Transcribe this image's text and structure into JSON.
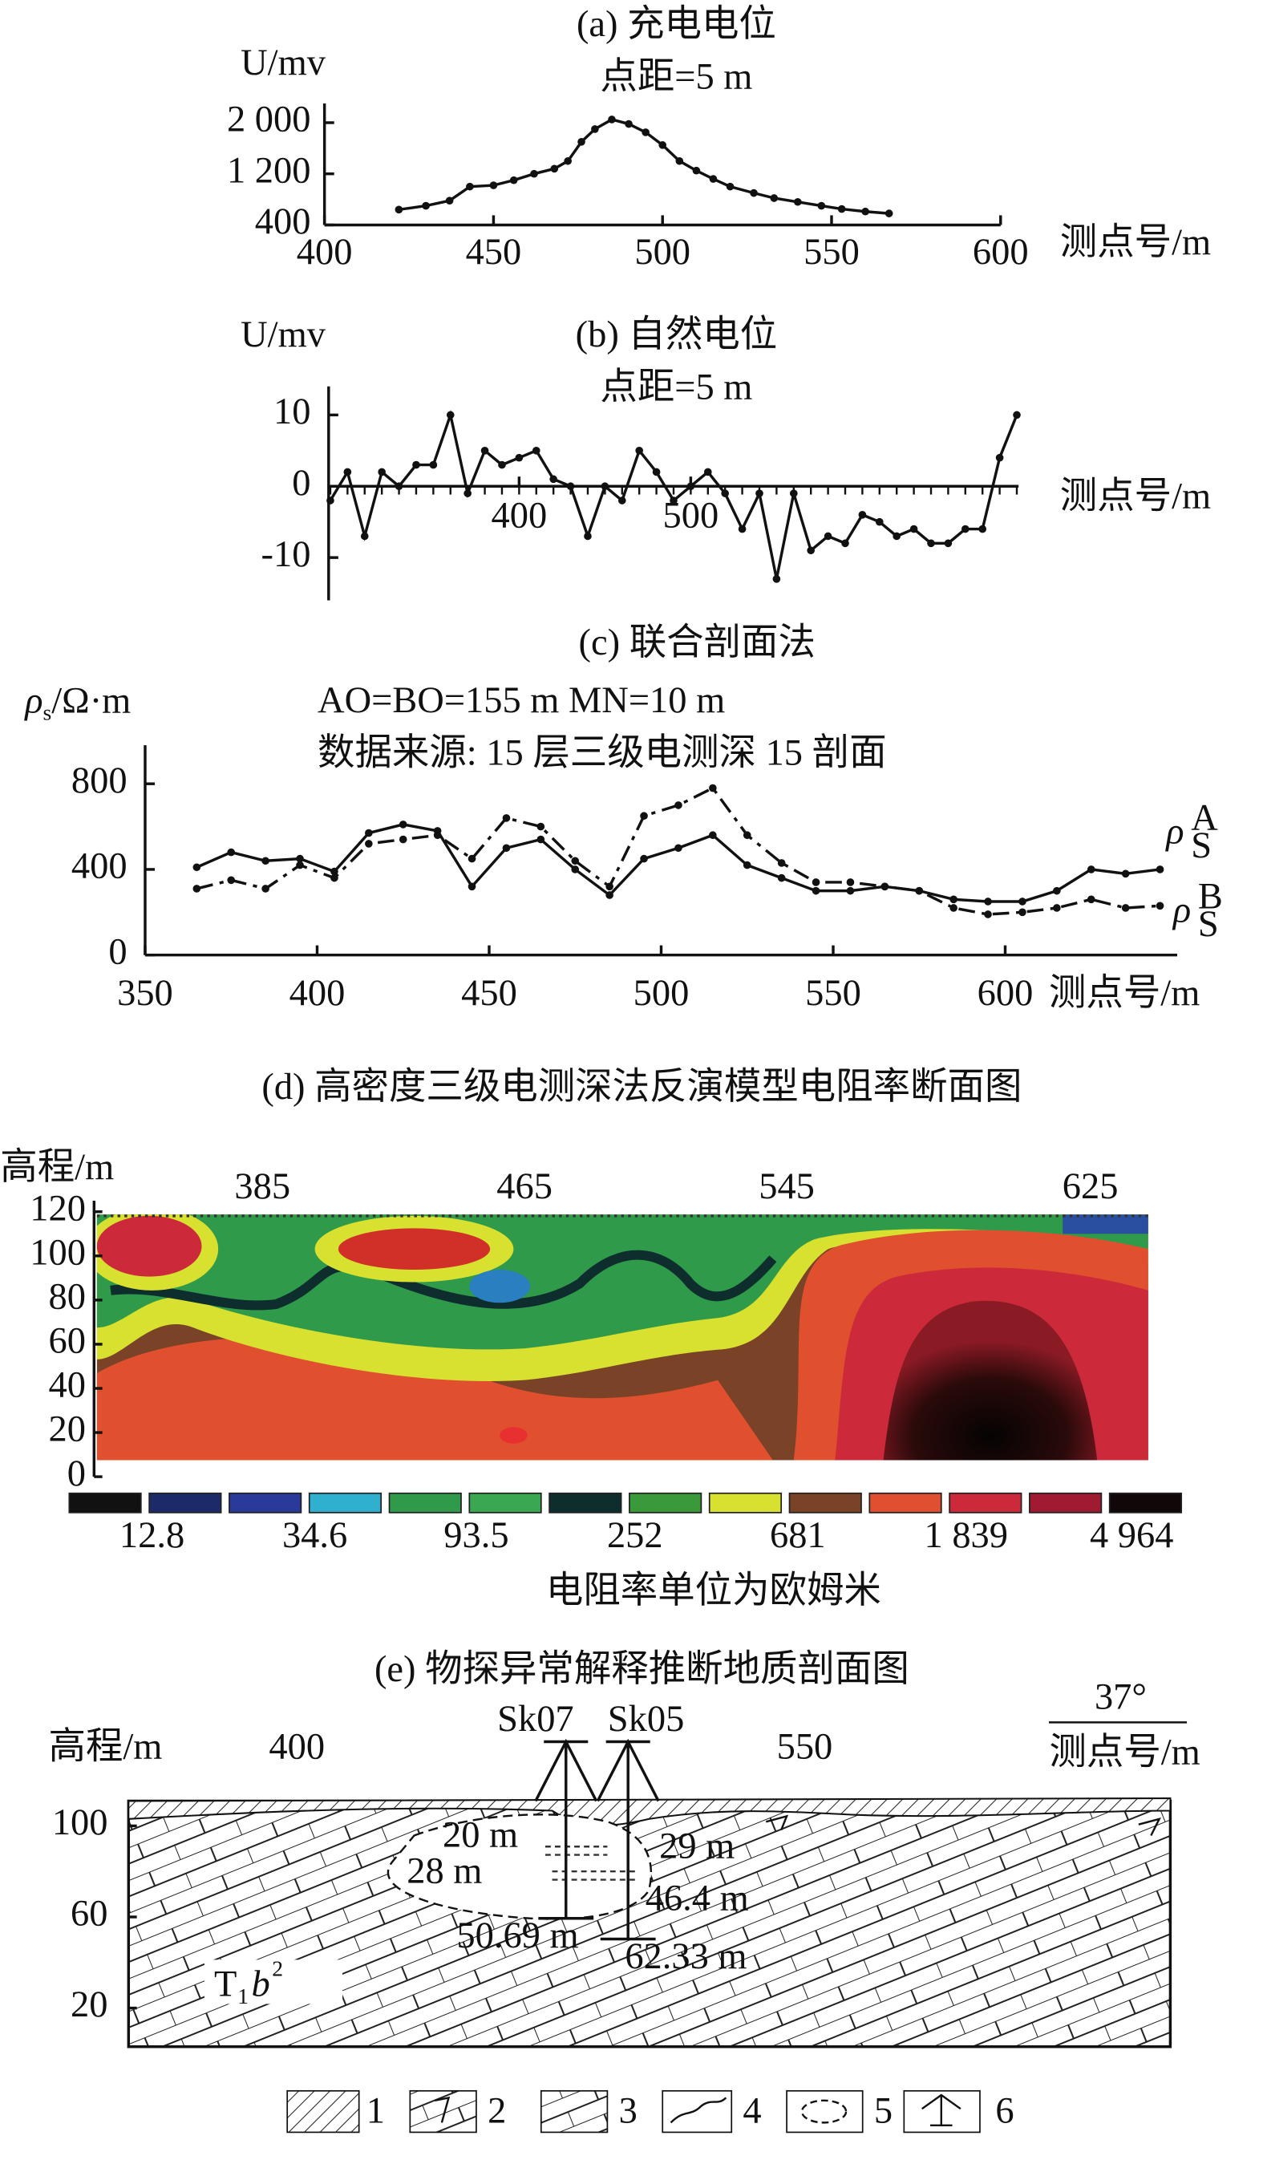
{
  "chart_data": [
    {
      "type": "line",
      "title": "(a) 充电电位",
      "subtitle": "点距=5 m",
      "ylabel": "U/mv",
      "xlabel": "测点号/m",
      "xlim": [
        400,
        600
      ],
      "xticks": [
        400,
        450,
        500,
        550,
        600
      ],
      "ylim": [
        400,
        2300
      ],
      "yticks": [
        400,
        {
          "value": 1200,
          "label": "1 200"
        },
        {
          "value": 2000,
          "label": "2 000"
        }
      ],
      "x": [
        422,
        430,
        437,
        443,
        450,
        456,
        462,
        468,
        472,
        476,
        480,
        485,
        490,
        495,
        500,
        505,
        510,
        515,
        520,
        527,
        533,
        540,
        547,
        553,
        560,
        567
      ],
      "series": [
        {
          "color": "#111111",
          "style": "solid",
          "values": [
            640,
            700,
            780,
            1000,
            1020,
            1100,
            1200,
            1280,
            1400,
            1700,
            1900,
            2050,
            1980,
            1850,
            1650,
            1400,
            1250,
            1120,
            1000,
            900,
            820,
            760,
            700,
            650,
            610,
            580
          ]
        }
      ]
    },
    {
      "type": "line",
      "title": "(b) 自然电位",
      "subtitle": "点距=5 m",
      "ylabel": "U/mv",
      "xlabel": "测点号/m",
      "xlim": [
        289,
        691
      ],
      "xticks": [
        400,
        500
      ],
      "ylim": [
        -16,
        14
      ],
      "yticks": [
        10,
        0,
        -10
      ],
      "x": [
        290,
        300,
        310,
        320,
        330,
        340,
        350,
        360,
        370,
        380,
        390,
        400,
        410,
        420,
        430,
        440,
        450,
        460,
        470,
        480,
        490,
        500,
        510,
        520,
        530,
        540,
        550,
        560,
        570,
        580,
        590,
        600,
        610,
        620,
        630,
        640,
        650,
        660,
        670,
        680,
        690
      ],
      "series": [
        {
          "color": "#111111",
          "style": "solid",
          "values": [
            -2,
            2,
            -7,
            2,
            0,
            3,
            3,
            10,
            -1,
            5,
            3,
            4,
            5,
            1,
            0,
            -7,
            0,
            -2,
            5,
            2,
            -2,
            0,
            2,
            -1,
            -6,
            -1,
            -13,
            -1,
            -9,
            -7,
            -8,
            -4,
            -5,
            -7,
            -6,
            -8,
            -8,
            -6,
            -6,
            4,
            10
          ]
        }
      ]
    },
    {
      "type": "line",
      "title": "(c) 联合剖面法",
      "subtitle": "AO=BO=155 m  MN=10 m",
      "note": "数据来源: 15 层三级电测深 15 剖面",
      "ylabel": [
        "ρ",
        "s",
        "/Ω·m"
      ],
      "xlabel": "测点号/m",
      "xlim": [
        350,
        650
      ],
      "xticks": [
        350,
        400,
        450,
        500,
        550,
        600
      ],
      "ylim": [
        0,
        980
      ],
      "yticks": [
        0,
        400,
        800
      ],
      "x": [
        365,
        375,
        385,
        395,
        405,
        415,
        425,
        435,
        445,
        455,
        465,
        475,
        485,
        495,
        505,
        515,
        525,
        535,
        545,
        555,
        565,
        575,
        585,
        595,
        605,
        615,
        625,
        635,
        645
      ],
      "series": [
        {
          "name": "ρ",
          "name_sub": "S",
          "name_sup": "A",
          "color": "#111111",
          "style": "solid",
          "values": [
            410,
            480,
            440,
            450,
            390,
            570,
            610,
            580,
            320,
            500,
            540,
            400,
            280,
            450,
            500,
            560,
            420,
            360,
            300,
            300,
            320,
            300,
            260,
            250,
            250,
            300,
            400,
            380,
            400
          ]
        },
        {
          "name": "ρ",
          "name_sub": "S",
          "name_sup": "B",
          "color": "#111111",
          "style": "dashed",
          "values": [
            310,
            350,
            310,
            420,
            360,
            520,
            540,
            560,
            450,
            640,
            600,
            440,
            320,
            650,
            700,
            780,
            560,
            430,
            340,
            340,
            320,
            300,
            220,
            190,
            200,
            220,
            260,
            220,
            230
          ]
        }
      ]
    }
  ],
  "resistivity_section": {
    "title": "(d) 高密度三级电测深法反演模型电阻率断面图",
    "ylabel": "高程/m",
    "yticks": [
      0,
      20,
      40,
      60,
      80,
      100,
      120
    ],
    "xtick_labels": [
      "385",
      "465",
      "545",
      "625"
    ],
    "colorbar": {
      "colors": [
        "#111111",
        "#1c2a6a",
        "#2a3a9a",
        "#2fb0cf",
        "#2f9a4a",
        "#3aa852",
        "#0e2e2e",
        "#3a9a3a",
        "#d8e030",
        "#7a4226",
        "#e0502e",
        "#cc2a3a",
        "#a01a32",
        "#100808"
      ],
      "labels": [
        "12.8",
        "34.6",
        "93.5",
        "252",
        "681",
        "1 839",
        "4 964"
      ]
    },
    "unit_note": "电阻率单位为欧姆米"
  },
  "geologic_section": {
    "title": "(e) 物探异常解释推断地质剖面图",
    "ylabel": "高程/m",
    "yticks": [
      100,
      60,
      20
    ],
    "xtick_labels": [
      "400",
      "550"
    ],
    "angle": "37°",
    "xlabel": "测点号/m",
    "boreholes": [
      "Sk07",
      "Sk05"
    ],
    "depth_labels": [
      "20 m",
      "28 m",
      "29 m",
      "46.4 m",
      "50.69 m",
      "62.33 m"
    ],
    "formation": {
      "base": "T",
      "sub": "1",
      "italic": "b",
      "sup": "2"
    },
    "legend": [
      "1",
      "2",
      "3",
      "4",
      "5",
      "6"
    ]
  }
}
